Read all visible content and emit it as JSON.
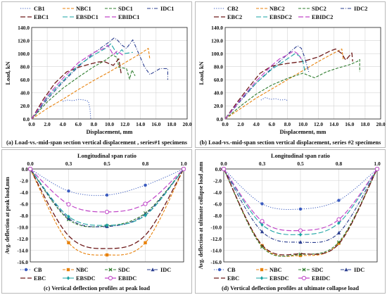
{
  "chart_data": [
    {
      "type": "line",
      "panel": "a",
      "caption": "(a) Load-vs.-mid-span section vertical displacement , series#1 specimens",
      "xlabel": "Displacement, mm",
      "ylabel": "Load, kN",
      "xlim": [
        0,
        20
      ],
      "ylim": [
        0,
        140
      ],
      "xticks": [
        "0.0",
        "2.0",
        "4.0",
        "6.0",
        "8.0",
        "10.0",
        "12.0",
        "14.0",
        "16.0",
        "18.0",
        "20.0"
      ],
      "yticks": [
        "0.0",
        "20.0",
        "40.0",
        "60.0",
        "80.0",
        "100.0",
        "120.0",
        "140.0"
      ],
      "legend_position": "top",
      "legend_columns": 4,
      "series": [
        {
          "name": "CB1",
          "color": "#3a5bbf",
          "dash": "dot",
          "width": 1,
          "x": [
            4.0,
            4.6,
            5.3,
            6.1,
            6.8,
            7.3,
            7.5,
            7.6
          ],
          "y": [
            27,
            29,
            28,
            30,
            29,
            27,
            15,
            0
          ]
        },
        {
          "name": "NBC1",
          "color": "#e8820c",
          "dash": "dashed",
          "width": 1.1,
          "x": [
            0,
            2,
            4,
            6,
            8,
            10,
            12,
            14,
            15,
            15.2
          ],
          "y": [
            0,
            16,
            30,
            45,
            59,
            72,
            86,
            100,
            108,
            91
          ]
        },
        {
          "name": "SDC1",
          "color": "#2f7d2f",
          "dash": "dashed",
          "width": 1.1,
          "x": [
            0,
            2,
            4,
            6,
            8,
            9.5,
            10.4,
            11.0,
            11.2,
            11.8,
            12.2,
            12.6,
            12.9,
            13.3
          ],
          "y": [
            0,
            26,
            47,
            64,
            80,
            90,
            98,
            94,
            79,
            78,
            77,
            61,
            75,
            66
          ]
        },
        {
          "name": "IDC1",
          "color": "#2a3d8f",
          "dash": "dashdot",
          "width": 1.1,
          "x": [
            0,
            2,
            4,
            6,
            8,
            10,
            10.6,
            11.0,
            11.6,
            12.2,
            13.0,
            14.5,
            15.2,
            16.5,
            17.5,
            17.5
          ],
          "y": [
            0,
            30,
            56,
            80,
            101,
            118,
            124,
            121,
            113,
            108,
            121,
            80,
            68,
            77,
            77,
            60
          ]
        },
        {
          "name": "EBC1",
          "color": "#6e1a1a",
          "dash": "longdash",
          "width": 1.3,
          "x": [
            0,
            1.5,
            3,
            4.5,
            6,
            7.5,
            8.5,
            9.3,
            10.5,
            11.2,
            11.5
          ],
          "y": [
            0,
            30,
            55,
            72,
            79,
            84,
            87,
            88,
            82,
            92,
            70
          ]
        },
        {
          "name": "EBSDC1",
          "color": "#1aa3a3",
          "dash": "longdash",
          "width": 1.1,
          "x": [
            0,
            2,
            4,
            6,
            8,
            9.5,
            10.2,
            11.0,
            11.6,
            12.0,
            13.0
          ],
          "y": [
            0,
            33,
            58,
            82,
            98,
            108,
            115,
            99,
            106,
            100,
            102
          ]
        },
        {
          "name": "EBIDC1",
          "color": "#c046c8",
          "dash": "longdash",
          "width": 1.2,
          "x": [
            0,
            2,
            4,
            6,
            8,
            9.3,
            9.8,
            10.5,
            11.0,
            11.8
          ],
          "y": [
            0,
            35,
            62,
            86,
            102,
            108,
            113,
            98,
            104,
            97
          ]
        }
      ]
    },
    {
      "type": "line",
      "panel": "b",
      "caption": "(b) Load-vs.-mid-span section vertical displacement, series #2 specimens",
      "xlabel": "Displacement, mm",
      "ylabel": "Load, kN",
      "xlim": [
        0,
        20
      ],
      "ylim": [
        0,
        140
      ],
      "xticks": [
        "0.0",
        "2.0",
        "4.0",
        "6.0",
        "8.0",
        "10.0",
        "12.0",
        "14.0",
        "16.0",
        "18.0",
        "20.0"
      ],
      "yticks": [
        "0.0",
        "20.0",
        "40.0",
        "60.0",
        "80.0",
        "100.0",
        "120.0",
        "140.0"
      ],
      "legend_position": "top",
      "legend_columns": 4,
      "series": [
        {
          "name": "CB2",
          "color": "#3a5bbf",
          "dash": "dot",
          "width": 1,
          "x": [
            4.6,
            5.2,
            5.8,
            6.5,
            7.2,
            7.8,
            8.0
          ],
          "y": [
            29,
            33,
            30,
            31,
            29,
            30,
            28
          ]
        },
        {
          "name": "NBC2",
          "color": "#e8820c",
          "dash": "dashed",
          "width": 1.1,
          "x": [
            0,
            2,
            4,
            6,
            8,
            10,
            12,
            14,
            15,
            15.2
          ],
          "y": [
            0,
            16,
            32,
            46,
            60,
            74,
            88,
            101,
            107,
            90
          ]
        },
        {
          "name": "SDC2",
          "color": "#2f7d2f",
          "dash": "dashed",
          "width": 1.1,
          "x": [
            0,
            2,
            4,
            6,
            8,
            10,
            11.5,
            13,
            14.5,
            16,
            17,
            17.3,
            17.3
          ],
          "y": [
            0,
            20,
            38,
            52,
            62,
            70,
            63,
            72,
            78,
            83,
            88,
            91,
            72
          ]
        },
        {
          "name": "IDC2",
          "color": "#2a3d8f",
          "dash": "dashdot",
          "width": 1.1,
          "x": [
            0,
            2,
            4,
            5.5,
            7,
            8.5,
            9.3,
            9.8,
            10.2,
            10.8
          ],
          "y": [
            0,
            28,
            55,
            72,
            88,
            104,
            112,
            108,
            95,
            70
          ]
        },
        {
          "name": "EBC2",
          "color": "#6e1a1a",
          "dash": "longdash",
          "width": 1.3,
          "x": [
            0,
            1.5,
            3,
            4.5,
            6,
            8,
            10,
            12,
            13.5,
            14.2,
            15.0,
            15.5,
            16.3,
            16.4
          ],
          "y": [
            0,
            25,
            48,
            70,
            81,
            85,
            88,
            95,
            104,
            107,
            100,
            90,
            101,
            88
          ]
        },
        {
          "name": "EBSDC2",
          "color": "#1aa3a3",
          "dash": "longdash",
          "width": 1.1,
          "x": [
            0,
            2,
            4,
            6,
            8,
            9.0,
            9.6,
            10.0,
            10.3
          ],
          "y": [
            0,
            30,
            55,
            76,
            92,
            100,
            96,
            88,
            70
          ]
        },
        {
          "name": "EBIDC2",
          "color": "#c046c8",
          "dash": "longdash",
          "width": 1.2,
          "x": [
            0,
            2,
            4,
            6,
            7,
            8,
            8.8,
            9.3,
            9.8
          ],
          "y": [
            0,
            30,
            58,
            82,
            92,
            98,
            104,
            100,
            92
          ]
        }
      ]
    },
    {
      "type": "line",
      "panel": "c",
      "caption": "(c) Vertical deflection profiles at peak load",
      "xlabel_top": "Longitudinal span ratio",
      "ylabel": "Avg. deflection at peak load,mm",
      "xlim": [
        0,
        1
      ],
      "ylim": [
        -16,
        0
      ],
      "xticks": [
        "0.0",
        "0.3",
        "0.5",
        "0.8",
        "1.0"
      ],
      "xtick_values": [
        0,
        0.25,
        0.5,
        0.75,
        1.0
      ],
      "yticks": [
        "0.0",
        "-2.0",
        "-4.0",
        "-6.0",
        "-8.0",
        "-10.0",
        "-12.0",
        "-14.0",
        "-16.0"
      ],
      "legend_position": "bottom",
      "legend_columns": 4,
      "series": [
        {
          "name": "CB",
          "color": "#3a5bbf",
          "dash": "dot",
          "marker": "circle",
          "width": 1,
          "x": [
            0,
            0.25,
            0.5,
            0.75,
            1.0
          ],
          "y": [
            0,
            -3.8,
            -4.5,
            -2.8,
            0
          ]
        },
        {
          "name": "NBC",
          "color": "#e8820c",
          "dash": "dashed",
          "marker": "square",
          "width": 1.1,
          "x": [
            0,
            0.25,
            0.5,
            0.75,
            1.0
          ],
          "y": [
            0,
            -12.7,
            -14.8,
            -12.7,
            0
          ]
        },
        {
          "name": "SDC",
          "color": "#2f7d2f",
          "dash": "dashed",
          "marker": "cross",
          "width": 1.1,
          "x": [
            0,
            0.25,
            0.5,
            0.75,
            1.0
          ],
          "y": [
            0,
            -8.7,
            -9.8,
            -7.6,
            0
          ]
        },
        {
          "name": "IDC",
          "color": "#2a3d8f",
          "dash": "dashdot",
          "marker": "triangle",
          "width": 1.1,
          "x": [
            0,
            0.25,
            0.5,
            0.75,
            1.0
          ],
          "y": [
            0,
            -8.5,
            -9.9,
            -7.8,
            0
          ]
        },
        {
          "name": "EBC",
          "color": "#6e1a1a",
          "dash": "longdash",
          "marker": "none",
          "width": 1.3,
          "x": [
            0,
            0.25,
            0.5,
            0.75,
            1.0
          ],
          "y": [
            0,
            -11.5,
            -13.7,
            -11.4,
            0
          ]
        },
        {
          "name": "EBSDC",
          "color": "#1aa3a3",
          "dash": "longdash",
          "marker": "diamond",
          "width": 1.1,
          "x": [
            0,
            0.25,
            0.5,
            0.75,
            1.0
          ],
          "y": [
            0,
            -8.2,
            -9.7,
            -8.0,
            0
          ]
        },
        {
          "name": "EBIDC",
          "color": "#c046c8",
          "dash": "longdash",
          "marker": "circle-open",
          "width": 1.2,
          "x": [
            0,
            0.25,
            0.5,
            0.75,
            1.0
          ],
          "y": [
            0,
            -6.1,
            -7.4,
            -6.0,
            0
          ]
        }
      ]
    },
    {
      "type": "line",
      "panel": "d",
      "caption": "(d) Vertical deflection profiles at ultimate collapse load",
      "xlabel_top": "Longitudinal span ratio",
      "ylabel": "Avg. deflection at ultimate collapse load ,mm",
      "xlim": [
        0,
        1
      ],
      "ylim": [
        -16,
        0
      ],
      "xticks": [
        "0.0",
        "0.3",
        "0.5",
        "0.8",
        "1.0"
      ],
      "xtick_values": [
        0,
        0.25,
        0.5,
        0.75,
        1.0
      ],
      "yticks": [
        "0.0",
        "-2.0",
        "-4.0",
        "-6.0",
        "-8.0",
        "-10.0",
        "-12.0",
        "-14.0",
        "-16.0"
      ],
      "legend_position": "bottom",
      "legend_columns": 4,
      "series": [
        {
          "name": "CB",
          "color": "#3a5bbf",
          "dash": "dot",
          "marker": "circle",
          "width": 1,
          "x": [
            0,
            0.25,
            0.5,
            0.75,
            1.0
          ],
          "y": [
            0,
            -6.0,
            -6.9,
            -5.4,
            0
          ]
        },
        {
          "name": "NBC",
          "color": "#e8820c",
          "dash": "dashed",
          "marker": "square",
          "width": 1.1,
          "x": [
            0,
            0.25,
            0.5,
            0.75,
            1.0
          ],
          "y": [
            0,
            -13.2,
            -14.9,
            -12.8,
            0
          ]
        },
        {
          "name": "SDC",
          "color": "#2f7d2f",
          "dash": "dashed",
          "marker": "cross",
          "width": 1.1,
          "x": [
            0,
            0.25,
            0.5,
            0.75,
            1.0
          ],
          "y": [
            0,
            -13.4,
            -14.7,
            -12.6,
            0
          ]
        },
        {
          "name": "IDC",
          "color": "#2a3d8f",
          "dash": "dashdot",
          "marker": "triangle",
          "width": 1.1,
          "x": [
            0,
            0.25,
            0.5,
            0.75,
            1.0
          ],
          "y": [
            0,
            -10.8,
            -12.6,
            -11.0,
            0
          ]
        },
        {
          "name": "EBC",
          "color": "#6e1a1a",
          "dash": "longdash",
          "marker": "none",
          "width": 1.3,
          "x": [
            0,
            0.25,
            0.5,
            0.75,
            1.0
          ],
          "y": [
            0,
            -13.1,
            -14.6,
            -12.9,
            0
          ]
        },
        {
          "name": "EBSDC",
          "color": "#1aa3a3",
          "dash": "longdash",
          "marker": "diamond",
          "width": 1.1,
          "x": [
            0,
            0.25,
            0.5,
            0.75,
            1.0
          ],
          "y": [
            0,
            -9.6,
            -11.3,
            -9.3,
            0
          ]
        },
        {
          "name": "EBIDC",
          "color": "#c046c8",
          "dash": "longdash",
          "marker": "circle-open",
          "width": 1.2,
          "x": [
            0,
            0.25,
            0.5,
            0.75,
            1.0
          ],
          "y": [
            0,
            -9.0,
            -10.6,
            -8.7,
            0
          ]
        }
      ]
    }
  ]
}
